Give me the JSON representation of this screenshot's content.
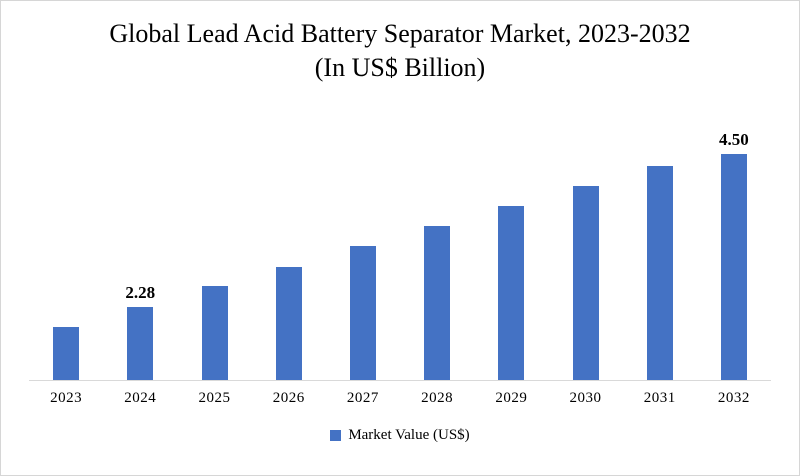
{
  "chart_data": {
    "type": "bar",
    "title": "Global Lead Acid Battery Separator Market, 2023-2032 (In US$ Billion)",
    "categories": [
      "2023",
      "2024",
      "2025",
      "2026",
      "2027",
      "2028",
      "2029",
      "2030",
      "2031",
      "2032"
    ],
    "values": [
      2.0,
      2.28,
      2.56,
      2.83,
      3.11,
      3.39,
      3.67,
      3.94,
      4.22,
      4.5
    ],
    "series_name": "Market Value (US$)",
    "data_labels": {
      "2024": "2.28",
      "2032": "4.50"
    },
    "bar_color": "#4472C4",
    "axis_line_color": "#D9D9D9",
    "ylim": [
      1.27,
      4.71
    ],
    "grid": false,
    "legend_position": "bottom"
  },
  "legend": {
    "label": "Market Value (US$)",
    "swatch_color": "#4472C4"
  }
}
